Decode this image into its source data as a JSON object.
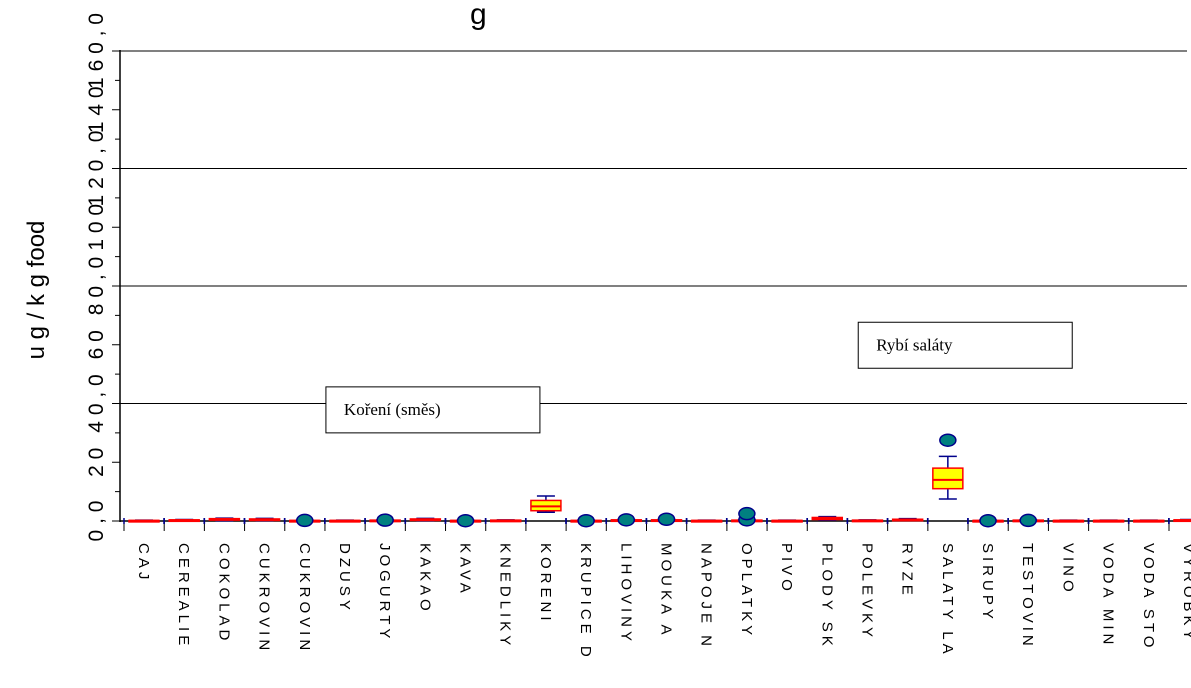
{
  "chart_data": {
    "type": "box",
    "title": "g",
    "ylabel": "u g / k g food",
    "xlabel": "",
    "ylim": [
      -5,
      160
    ],
    "y_ticks_major": [
      0,
      40,
      80,
      120,
      160
    ],
    "y_tick_labels": [
      "0 , 0",
      "4 0 , 0",
      "8 0 , 0",
      "1 2 0 , 0",
      "1 6 0 , 0"
    ],
    "y_ticks_minor": [
      20,
      60,
      100,
      140
    ],
    "y_minor_tick_labels": [
      "2 0",
      "6 0",
      "1 0 0",
      "1 4 0"
    ],
    "grid": true,
    "categories": [
      "CAJ",
      "CEREALIE",
      "COKOLAD",
      "CUKROVIN",
      "CUKROVIN",
      "DZUSY",
      "JOGURTY",
      "KAKAO",
      "KAVA",
      "KNEDLIKY",
      "KORENI",
      "KRUPICE D",
      "LIHOVINY",
      "MOUKA A",
      "NAPOJE N",
      "OPLATKY",
      "PIVO",
      "PLODY SK",
      "POLEVKY",
      "RYZE",
      "SALATY LA",
      "SIRUPY",
      "TESTOVIN",
      "VINO",
      "VODA MIN",
      "VODA STO",
      "VYROBKY"
    ],
    "boxes": [
      {
        "q1": 0.0,
        "median": 0.1,
        "q3": 0.2,
        "whisker_low": 0.0,
        "whisker_high": 0.3,
        "outliers": []
      },
      {
        "q1": 0.1,
        "median": 0.2,
        "q3": 0.4,
        "whisker_low": 0.0,
        "whisker_high": 0.5,
        "outliers": []
      },
      {
        "q1": 0.3,
        "median": 0.5,
        "q3": 0.8,
        "whisker_low": 0.1,
        "whisker_high": 1.0,
        "outliers": []
      },
      {
        "q1": 0.2,
        "median": 0.4,
        "q3": 0.7,
        "whisker_low": 0.1,
        "whisker_high": 0.9,
        "outliers": []
      },
      {
        "q1": 0.0,
        "median": 0.1,
        "q3": 0.2,
        "whisker_low": 0.0,
        "whisker_high": 0.3,
        "outliers": [
          0.2
        ]
      },
      {
        "q1": 0.0,
        "median": 0.1,
        "q3": 0.2,
        "whisker_low": 0.0,
        "whisker_high": 0.3,
        "outliers": []
      },
      {
        "q1": 0.0,
        "median": 0.1,
        "q3": 0.3,
        "whisker_low": 0.0,
        "whisker_high": 0.4,
        "outliers": [
          0.3
        ]
      },
      {
        "q1": 0.2,
        "median": 0.4,
        "q3": 0.7,
        "whisker_low": 0.1,
        "whisker_high": 0.9,
        "outliers": []
      },
      {
        "q1": 0.0,
        "median": 0.1,
        "q3": 0.2,
        "whisker_low": 0.0,
        "whisker_high": 0.3,
        "outliers": [
          0.1
        ]
      },
      {
        "q1": 0.0,
        "median": 0.1,
        "q3": 0.3,
        "whisker_low": 0.0,
        "whisker_high": 0.4,
        "outliers": []
      },
      {
        "q1": 3.5,
        "median": 5.0,
        "q3": 7.0,
        "whisker_low": 3.0,
        "whisker_high": 8.5,
        "outliers": []
      },
      {
        "q1": 0.0,
        "median": 0.1,
        "q3": 0.2,
        "whisker_low": 0.0,
        "whisker_high": 0.3,
        "outliers": [
          0.1
        ]
      },
      {
        "q1": 0.0,
        "median": 0.2,
        "q3": 0.4,
        "whisker_low": 0.0,
        "whisker_high": 0.5,
        "outliers": [
          0.4
        ]
      },
      {
        "q1": 0.0,
        "median": 0.2,
        "q3": 0.4,
        "whisker_low": 0.0,
        "whisker_high": 0.5,
        "outliers": [
          0.6
        ]
      },
      {
        "q1": 0.0,
        "median": 0.1,
        "q3": 0.2,
        "whisker_low": 0.0,
        "whisker_high": 0.3,
        "outliers": []
      },
      {
        "q1": 0.0,
        "median": 0.1,
        "q3": 0.3,
        "whisker_low": 0.0,
        "whisker_high": 0.4,
        "outliers": [
          0.4,
          2.5
        ]
      },
      {
        "q1": 0.0,
        "median": 0.1,
        "q3": 0.2,
        "whisker_low": 0.0,
        "whisker_high": 0.3,
        "outliers": []
      },
      {
        "q1": 0.5,
        "median": 0.8,
        "q3": 1.2,
        "whisker_low": 0.3,
        "whisker_high": 1.5,
        "outliers": []
      },
      {
        "q1": 0.0,
        "median": 0.1,
        "q3": 0.3,
        "whisker_low": 0.0,
        "whisker_high": 0.4,
        "outliers": []
      },
      {
        "q1": 0.2,
        "median": 0.4,
        "q3": 0.6,
        "whisker_low": 0.1,
        "whisker_high": 0.8,
        "outliers": []
      },
      {
        "q1": 11.0,
        "median": 14.0,
        "q3": 18.0,
        "whisker_low": 7.5,
        "whisker_high": 22.0,
        "outliers": [
          27.5
        ]
      },
      {
        "q1": 0.0,
        "median": 0.1,
        "q3": 0.2,
        "whisker_low": 0.0,
        "whisker_high": 0.3,
        "outliers": [
          0.1
        ]
      },
      {
        "q1": 0.0,
        "median": 0.1,
        "q3": 0.3,
        "whisker_low": 0.0,
        "whisker_high": 0.4,
        "outliers": [
          0.2
        ]
      },
      {
        "q1": 0.0,
        "median": 0.1,
        "q3": 0.2,
        "whisker_low": 0.0,
        "whisker_high": 0.3,
        "outliers": []
      },
      {
        "q1": 0.0,
        "median": 0.1,
        "q3": 0.2,
        "whisker_low": 0.0,
        "whisker_high": 0.3,
        "outliers": []
      },
      {
        "q1": 0.0,
        "median": 0.1,
        "q3": 0.2,
        "whisker_low": 0.0,
        "whisker_high": 0.3,
        "outliers": []
      },
      {
        "q1": 0.1,
        "median": 0.2,
        "q3": 0.4,
        "whisker_low": 0.0,
        "whisker_high": 0.5,
        "outliers": []
      }
    ],
    "annotations": [
      {
        "text": "Koření (směs)",
        "y": 30,
        "category_index": 10
      },
      {
        "text": "Rybí saláty",
        "y": 52,
        "category_index": 22
      }
    ],
    "colors": {
      "box_fill": "#ffff00",
      "box_outline": "#ff0000",
      "whisker": "#00008b",
      "median": "#ff0000",
      "outlier_fill": "#008080",
      "outlier_stroke": "#00008b",
      "axis": "#000000",
      "grid": "#000000"
    }
  }
}
